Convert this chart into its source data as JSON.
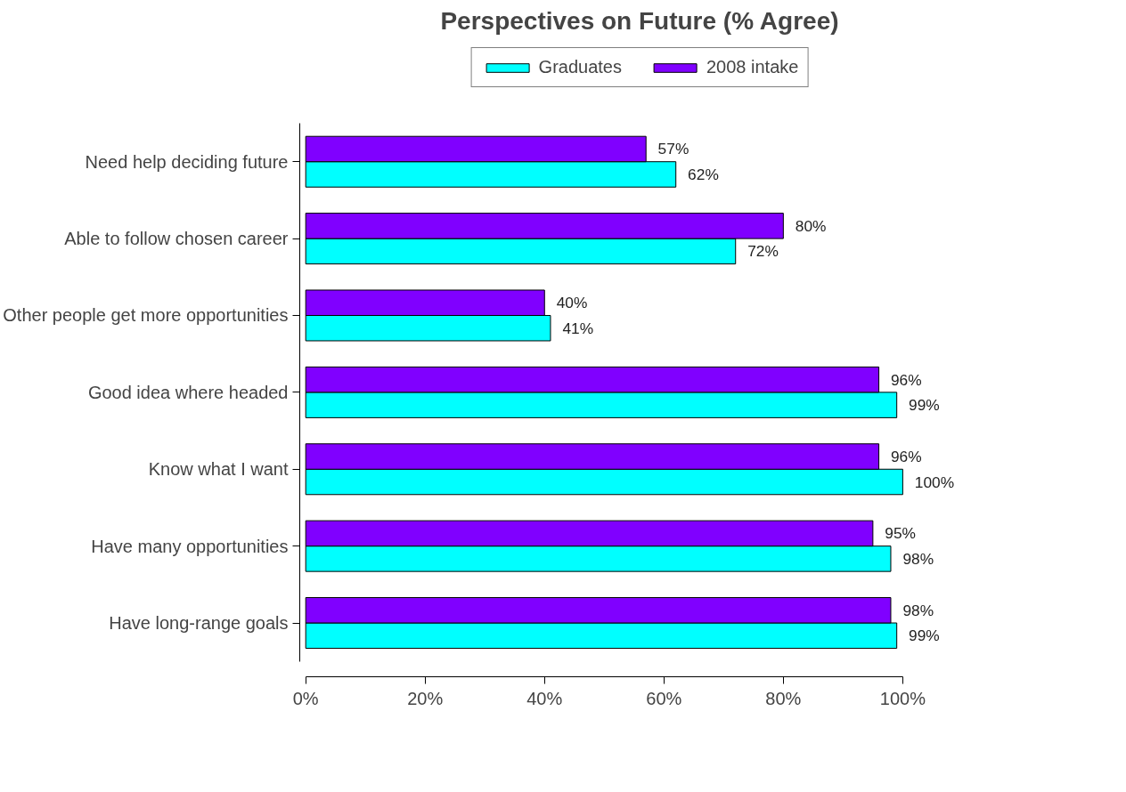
{
  "chart_data": {
    "type": "bar",
    "orientation": "horizontal",
    "title": "Perspectives on Future (% Agree)",
    "categories": [
      "Need help deciding future",
      "Able to follow chosen career",
      "Other people get more opportunities",
      "Good idea where headed",
      "Know what I want",
      "Have many opportunities",
      "Have long-range goals"
    ],
    "series": [
      {
        "name": "Graduates",
        "color": "#00ffff",
        "values": [
          62,
          72,
          41,
          99,
          100,
          98,
          99
        ],
        "value_labels": [
          "62%",
          "72%",
          "41%",
          "99%",
          "100%",
          "98%",
          "99%"
        ]
      },
      {
        "name": "2008 intake",
        "color": "#8000ff",
        "values": [
          57,
          80,
          40,
          96,
          96,
          95,
          98
        ],
        "value_labels": [
          "57%",
          "80%",
          "40%",
          "96%",
          "96%",
          "95%",
          "98%"
        ]
      }
    ],
    "xlim": [
      0,
      100
    ],
    "xticks": [
      {
        "value": 0,
        "label": "0%"
      },
      {
        "value": 20,
        "label": "20%"
      },
      {
        "value": 40,
        "label": "40%"
      },
      {
        "value": 60,
        "label": "60%"
      },
      {
        "value": 80,
        "label": "80%"
      },
      {
        "value": 100,
        "label": "100%"
      }
    ],
    "legend": "top",
    "grid": false
  }
}
